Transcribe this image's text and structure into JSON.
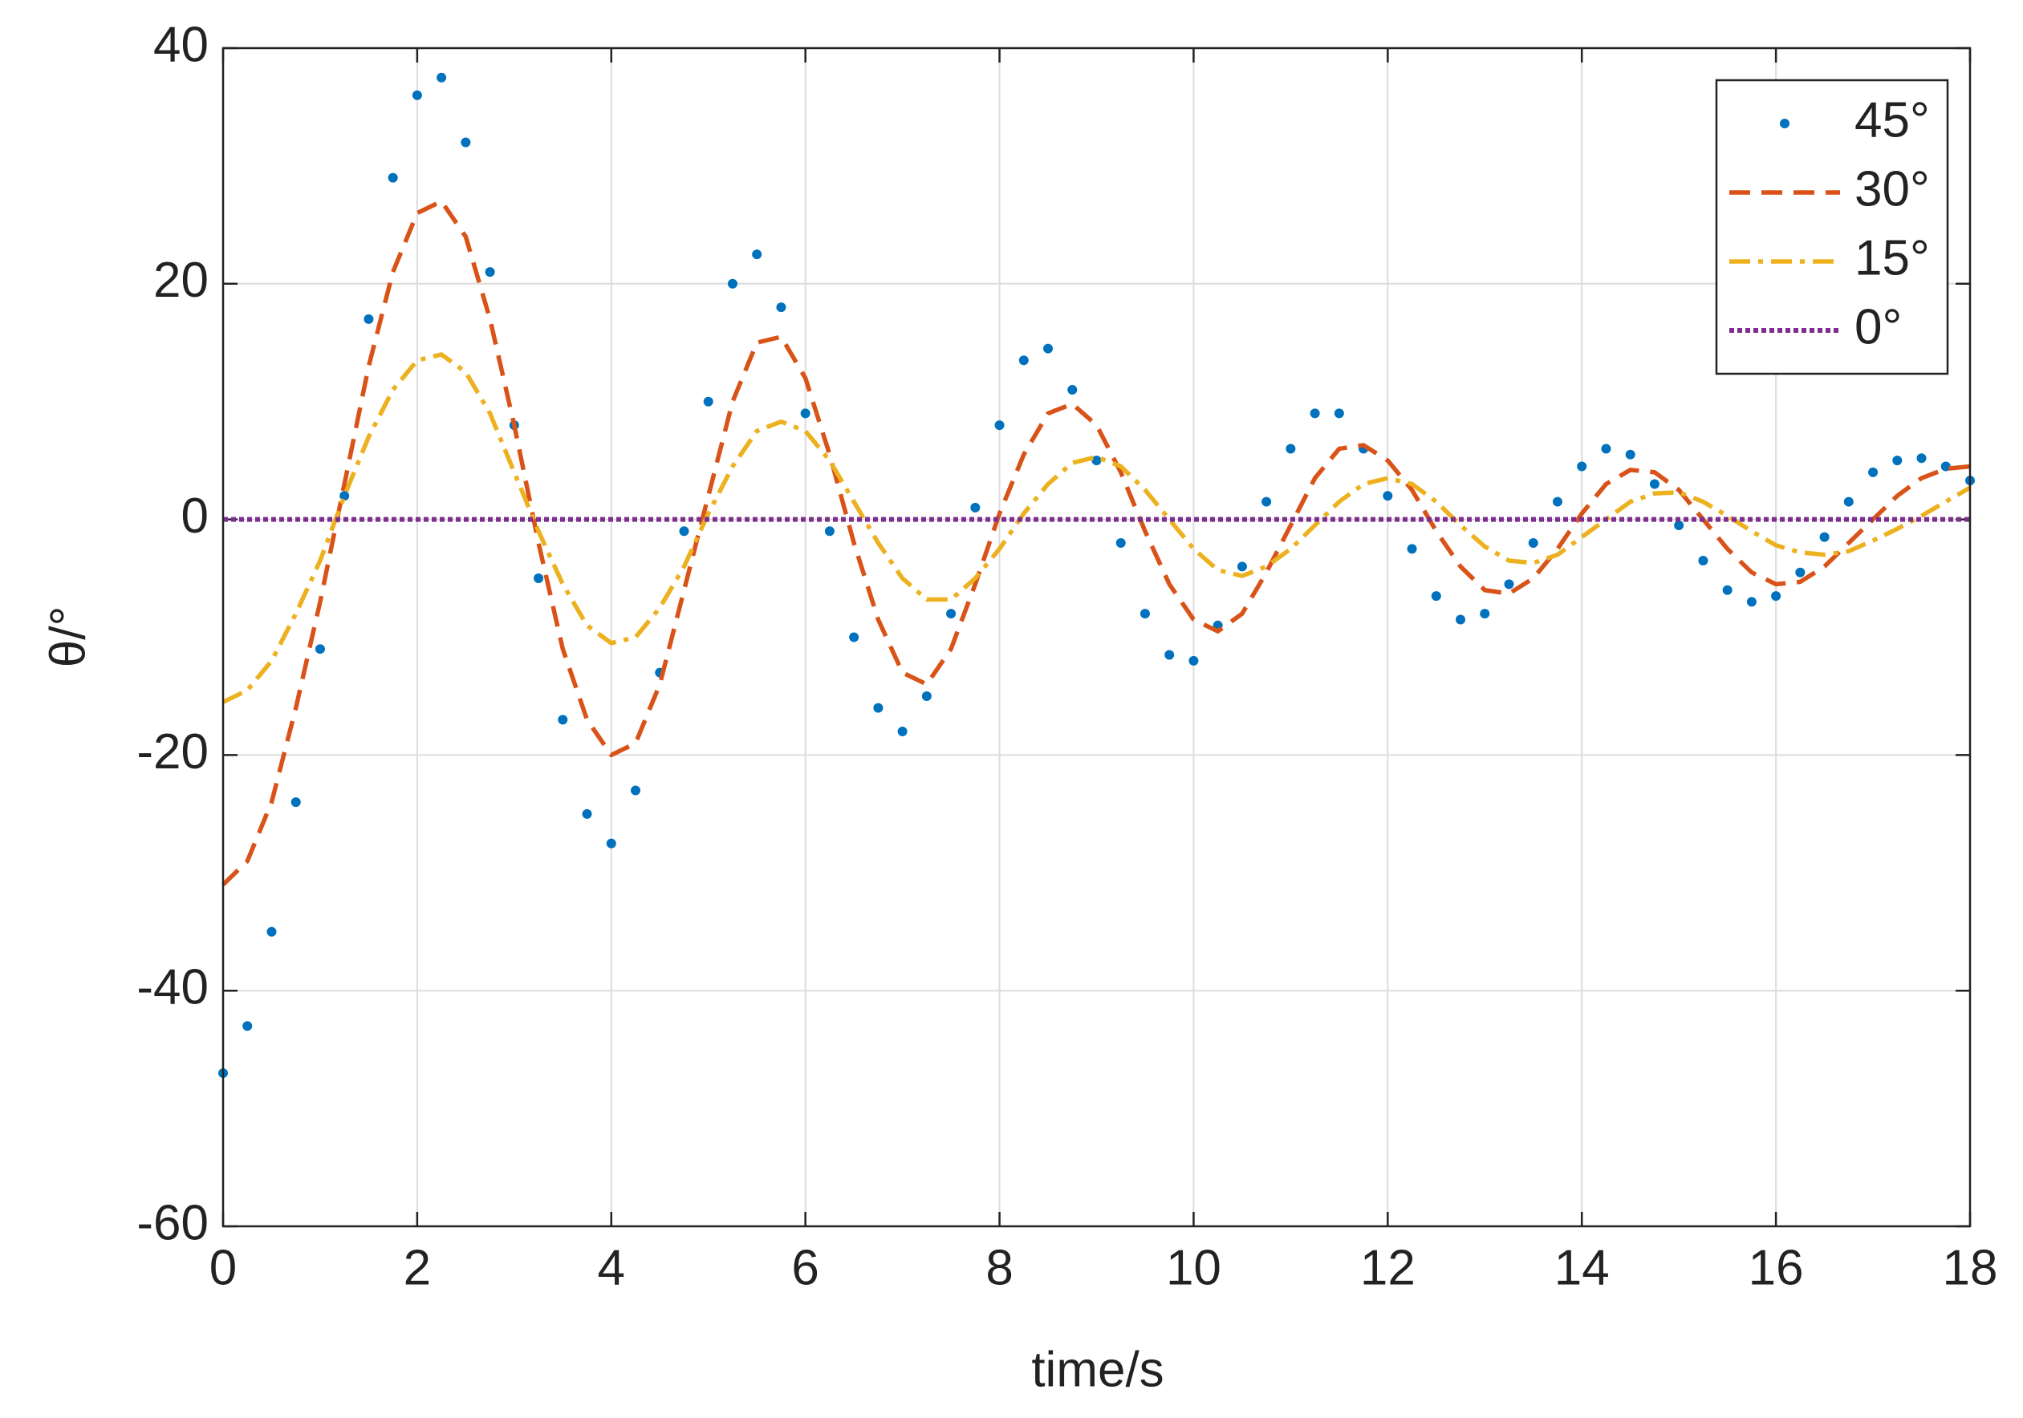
{
  "chart_data": {
    "type": "line",
    "xlabel": "time/s",
    "ylabel": "θ/°",
    "xlim": [
      0,
      18
    ],
    "ylim": [
      -60,
      40
    ],
    "xticks": [
      0,
      2,
      4,
      6,
      8,
      10,
      12,
      14,
      16,
      18
    ],
    "yticks": [
      -60,
      -40,
      -20,
      0,
      20,
      40
    ],
    "grid": true,
    "legend": "upper right",
    "x": [
      0,
      0.25,
      0.5,
      0.75,
      1,
      1.25,
      1.5,
      1.75,
      2,
      2.25,
      2.5,
      2.75,
      3,
      3.25,
      3.5,
      3.75,
      4,
      4.25,
      4.5,
      4.75,
      5,
      5.25,
      5.5,
      5.75,
      6,
      6.25,
      6.5,
      6.75,
      7,
      7.25,
      7.5,
      7.75,
      8,
      8.25,
      8.5,
      8.75,
      9,
      9.25,
      9.5,
      9.75,
      10,
      10.25,
      10.5,
      10.75,
      11,
      11.25,
      11.5,
      11.75,
      12,
      12.25,
      12.5,
      12.75,
      13,
      13.25,
      13.5,
      13.75,
      14,
      14.25,
      14.5,
      14.75,
      15,
      15.25,
      15.5,
      15.75,
      16,
      16.25,
      16.5,
      16.75,
      17,
      17.25,
      17.5,
      17.75,
      18
    ],
    "series": [
      {
        "name": "45°",
        "color": "#0072BD",
        "style": "dot-markers",
        "values": [
          -47,
          -43,
          -35,
          -24,
          -11,
          2,
          17,
          29,
          36,
          37.5,
          32,
          21,
          8,
          -5,
          -17,
          -25,
          -27.5,
          -23,
          -13,
          -1,
          10,
          20,
          22.5,
          18,
          9,
          -1,
          -10,
          -16,
          -18,
          -15,
          -8,
          1,
          8,
          13.5,
          14.5,
          11,
          5,
          -2,
          -8,
          -11.5,
          -12,
          -9,
          -4,
          1.5,
          6,
          9,
          9,
          6,
          2,
          -2.5,
          -6.5,
          -8.5,
          -8,
          -5.5,
          -2,
          1.5,
          4.5,
          6,
          5.5,
          3,
          -0.5,
          -3.5,
          -6,
          -7,
          -6.5,
          -4.5,
          -1.5,
          1.5,
          4,
          5,
          5.2,
          4.5,
          3.3
        ]
      },
      {
        "name": "30°",
        "color": "#D95319",
        "style": "dashed",
        "values": [
          -31,
          -29,
          -24,
          -16,
          -7,
          3,
          13,
          21,
          26,
          27,
          24,
          17,
          8,
          -2,
          -11,
          -17,
          -20,
          -19,
          -14,
          -6,
          2,
          10,
          15,
          15.5,
          12,
          5.5,
          -2,
          -8.5,
          -13,
          -14,
          -11,
          -5.5,
          0.5,
          5.5,
          9,
          9.8,
          8,
          4,
          -1,
          -5.5,
          -8.5,
          -9.5,
          -8,
          -4.5,
          -0.5,
          3.5,
          6,
          6.3,
          5,
          2.5,
          -1,
          -4,
          -6,
          -6.3,
          -5,
          -2.5,
          0.5,
          3,
          4.2,
          4,
          2.5,
          0,
          -2.5,
          -4.5,
          -5.5,
          -5.3,
          -4,
          -2,
          0,
          2,
          3.5,
          4.3,
          4.5
        ]
      },
      {
        "name": "15°",
        "color": "#EDB120",
        "style": "dash-dot",
        "values": [
          -15.5,
          -14.5,
          -12,
          -8,
          -3.5,
          2,
          7,
          11,
          13.5,
          14,
          12.5,
          9,
          4,
          -1,
          -5.5,
          -9,
          -10.5,
          -10,
          -7.5,
          -4,
          0.5,
          4.5,
          7.5,
          8.3,
          7.5,
          5,
          1.5,
          -2,
          -5,
          -6.8,
          -6.8,
          -5,
          -2.5,
          0.5,
          3,
          4.8,
          5.3,
          4.5,
          2.5,
          0,
          -2.5,
          -4.3,
          -4.8,
          -4,
          -2.5,
          -0.5,
          1.5,
          3,
          3.5,
          3,
          1.5,
          -0.5,
          -2.3,
          -3.5,
          -3.7,
          -3,
          -1.5,
          0,
          1.5,
          2.2,
          2.3,
          1.5,
          0.3,
          -1,
          -2.2,
          -2.8,
          -3,
          -2.7,
          -1.8,
          -0.8,
          0.3,
          1.5,
          2.7
        ]
      },
      {
        "name": "0°",
        "color": "#7E2F8E",
        "style": "dotted",
        "values": [
          0,
          0,
          0,
          0,
          0,
          0,
          0,
          0,
          0,
          0,
          0,
          0,
          0,
          0,
          0,
          0,
          0,
          0,
          0,
          0,
          0,
          0,
          0,
          0,
          0,
          0,
          0,
          0,
          0,
          0,
          0,
          0,
          0,
          0,
          0,
          0,
          0,
          0,
          0,
          0,
          0,
          0,
          0,
          0,
          0,
          0,
          0,
          0,
          0,
          0,
          0,
          0,
          0,
          0,
          0,
          0,
          0,
          0,
          0,
          0,
          0,
          0,
          0,
          0,
          0,
          0,
          0,
          0,
          0,
          0,
          0,
          0,
          0
        ]
      }
    ]
  }
}
